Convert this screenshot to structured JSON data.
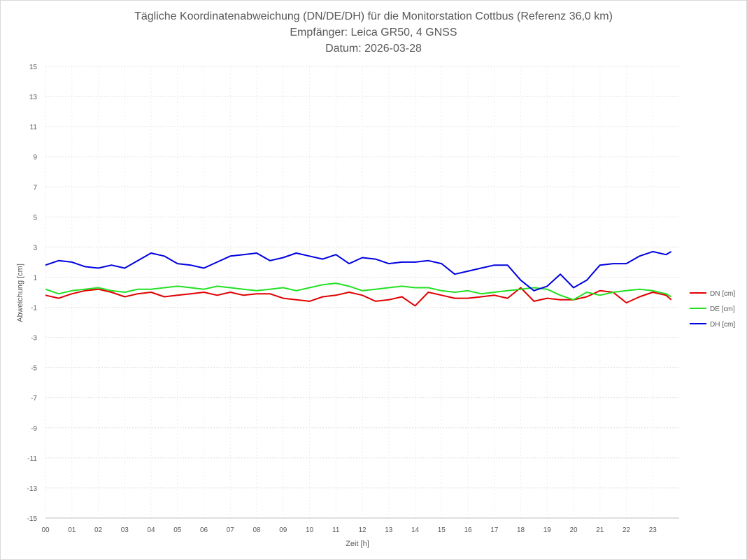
{
  "chart_data": {
    "type": "line",
    "title": [
      "Tägliche Koordinatenabweichung (DN/DE/DH) für die Monitorstation Cottbus (Referenz 36,0 km)",
      "Empfänger: Leica GR50, 4 GNSS",
      "Datum: 2026-03-28"
    ],
    "xlabel": "Zeit [h]",
    "ylabel": "Abweichung [cm]",
    "xlim": [
      0,
      24
    ],
    "ylim": [
      -15,
      15
    ],
    "x_ticks": [
      0,
      1,
      2,
      3,
      4,
      5,
      6,
      7,
      8,
      9,
      10,
      11,
      12,
      13,
      14,
      15,
      16,
      17,
      18,
      19,
      20,
      21,
      22,
      23
    ],
    "x_tick_labels": [
      "00",
      "01",
      "02",
      "03",
      "04",
      "05",
      "06",
      "07",
      "08",
      "09",
      "10",
      "11",
      "12",
      "13",
      "14",
      "15",
      "16",
      "17",
      "18",
      "19",
      "20",
      "21",
      "22",
      "23"
    ],
    "y_ticks": [
      15,
      13,
      11,
      9,
      7,
      5,
      3,
      1,
      -1,
      -3,
      -5,
      -7,
      -9,
      -11,
      -13,
      -15
    ],
    "grid": true,
    "legend_position": "right",
    "series": [
      {
        "name": "DN [cm]",
        "color": "#e00000",
        "x": [
          0,
          0.5,
          1,
          1.5,
          2,
          2.5,
          3,
          3.5,
          4,
          4.5,
          5,
          5.5,
          6,
          6.5,
          7,
          7.5,
          8,
          8.5,
          9,
          9.5,
          10,
          10.5,
          11,
          11.5,
          12,
          12.5,
          13,
          13.5,
          14,
          14.5,
          15,
          15.5,
          16,
          16.5,
          17,
          17.5,
          18,
          18.5,
          19,
          19.5,
          20,
          20.5,
          21,
          21.5,
          22,
          22.5,
          23,
          23.5,
          23.7
        ],
        "y": [
          -0.2,
          -0.4,
          -0.1,
          0.1,
          0.2,
          0,
          -0.3,
          -0.1,
          0,
          -0.3,
          -0.2,
          -0.1,
          0,
          -0.2,
          0,
          -0.2,
          -0.1,
          -0.1,
          -0.4,
          -0.5,
          -0.6,
          -0.3,
          -0.2,
          0,
          -0.2,
          -0.6,
          -0.5,
          -0.3,
          -0.9,
          0,
          -0.2,
          -0.4,
          -0.4,
          -0.3,
          -0.2,
          -0.4,
          0.3,
          -0.6,
          -0.4,
          -0.5,
          -0.5,
          -0.3,
          0.1,
          0,
          -0.7,
          -0.3,
          0,
          -0.2,
          -0.5
        ]
      },
      {
        "name": "DE [cm]",
        "color": "#22e022",
        "x": [
          0,
          0.5,
          1,
          1.5,
          2,
          2.5,
          3,
          3.5,
          4,
          4.5,
          5,
          5.5,
          6,
          6.5,
          7,
          7.5,
          8,
          8.5,
          9,
          9.5,
          10,
          10.5,
          11,
          11.5,
          12,
          12.5,
          13,
          13.5,
          14,
          14.5,
          15,
          15.5,
          16,
          16.5,
          17,
          17.5,
          18,
          18.5,
          19,
          19.5,
          20,
          20.5,
          21,
          21.5,
          22,
          22.5,
          23,
          23.5,
          23.7
        ],
        "y": [
          0.2,
          -0.1,
          0.1,
          0.2,
          0.3,
          0.1,
          0,
          0.2,
          0.2,
          0.3,
          0.4,
          0.3,
          0.2,
          0.4,
          0.3,
          0.2,
          0.1,
          0.2,
          0.3,
          0.1,
          0.3,
          0.5,
          0.6,
          0.4,
          0.1,
          0.2,
          0.3,
          0.4,
          0.3,
          0.3,
          0.1,
          0,
          0.1,
          -0.1,
          0,
          0.1,
          0.2,
          0.3,
          0.2,
          -0.2,
          -0.5,
          0,
          -0.2,
          0,
          0.1,
          0.2,
          0.1,
          -0.1,
          -0.3
        ]
      },
      {
        "name": "DH [cm]",
        "color": "#0000e0",
        "x": [
          0,
          0.5,
          1,
          1.5,
          2,
          2.5,
          3,
          3.5,
          4,
          4.5,
          5,
          5.5,
          6,
          6.5,
          7,
          7.5,
          8,
          8.5,
          9,
          9.5,
          10,
          10.5,
          11,
          11.5,
          12,
          12.5,
          13,
          13.5,
          14,
          14.5,
          15,
          15.5,
          16,
          16.5,
          17,
          17.5,
          18,
          18.5,
          19,
          19.5,
          20,
          20.5,
          21,
          21.5,
          22,
          22.5,
          23,
          23.5,
          23.7
        ],
        "y": [
          1.8,
          2.1,
          2.0,
          1.7,
          1.6,
          1.8,
          1.6,
          2.1,
          2.6,
          2.4,
          1.9,
          1.8,
          1.6,
          2.0,
          2.4,
          2.5,
          2.6,
          2.1,
          2.3,
          2.6,
          2.4,
          2.2,
          2.5,
          1.9,
          2.3,
          2.2,
          1.9,
          2.0,
          2.0,
          2.1,
          1.9,
          1.2,
          1.4,
          1.6,
          1.8,
          1.8,
          0.8,
          0.1,
          0.4,
          1.2,
          0.3,
          0.8,
          1.8,
          1.9,
          1.9,
          2.4,
          2.7,
          2.5,
          2.7
        ]
      }
    ]
  }
}
